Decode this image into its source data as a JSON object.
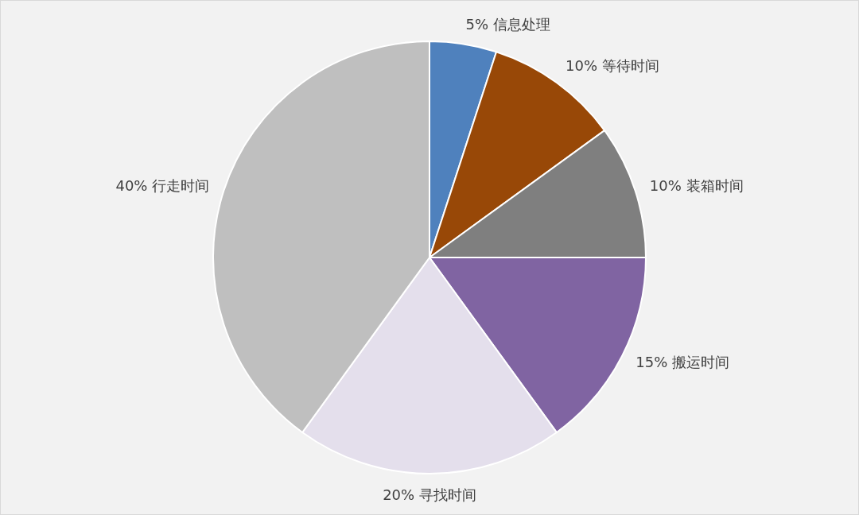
{
  "chart_data": {
    "type": "pie",
    "categories": [
      "信息处理",
      "等待时间",
      "装箱时间",
      "搬运时间",
      "寻找时间",
      "行走时间"
    ],
    "values": [
      5,
      10,
      10,
      15,
      20,
      40
    ],
    "value_labels": [
      "5%",
      "10%",
      "10%",
      "15%",
      "20%",
      "40%"
    ],
    "colors": [
      "#4f81bd",
      "#984807",
      "#7f7f7f",
      "#8064a2",
      "#e4dfec",
      "#bfbfbf"
    ]
  }
}
